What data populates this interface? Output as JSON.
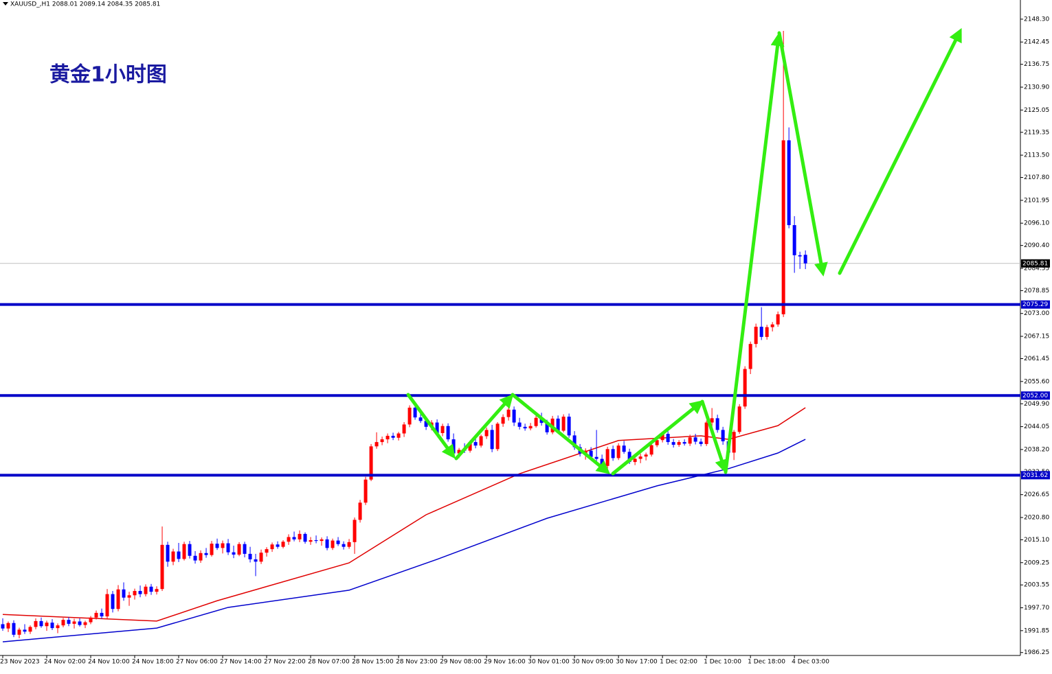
{
  "chart_data": {
    "type": "candlestick",
    "header": "XAUUSD_,H1  2088.01 2089.14 2084.35 2085.81",
    "title": "黄金1小时图",
    "up_color": "#ff0000",
    "down_color": "#0000ff",
    "ylim": [
      1985.5,
      2153.2
    ],
    "xlim": [
      -0.5,
      185.1
    ],
    "yticks": [
      {
        "value": 2148.3,
        "label": "2148.30"
      },
      {
        "value": 2142.45,
        "label": "2142.45"
      },
      {
        "value": 2136.75,
        "label": "2136.75"
      },
      {
        "value": 2130.9,
        "label": "2130.90"
      },
      {
        "value": 2125.05,
        "label": "2125.05"
      },
      {
        "value": 2119.35,
        "label": "2119.35"
      },
      {
        "value": 2113.5,
        "label": "2113.50"
      },
      {
        "value": 2107.8,
        "label": "2107.80"
      },
      {
        "value": 2101.95,
        "label": "2101.95"
      },
      {
        "value": 2096.1,
        "label": "2096.10"
      },
      {
        "value": 2090.4,
        "label": "2090.40"
      },
      {
        "value": 2084.55,
        "label": "2084.55"
      },
      {
        "value": 2078.85,
        "label": "2078.85"
      },
      {
        "value": 2073,
        "label": "2073.00"
      },
      {
        "value": 2067.15,
        "label": "2067.15"
      },
      {
        "value": 2061.45,
        "label": "2061.45"
      },
      {
        "value": 2055.6,
        "label": "2055.60"
      },
      {
        "value": 2049.9,
        "label": "2049.90"
      },
      {
        "value": 2044.05,
        "label": "2044.05"
      },
      {
        "value": 2038.2,
        "label": "2038.20"
      },
      {
        "value": 2032.5,
        "label": "2032.50"
      },
      {
        "value": 2026.65,
        "label": "2026.65"
      },
      {
        "value": 2020.8,
        "label": "2020.80"
      },
      {
        "value": 2015.1,
        "label": "2015.10"
      },
      {
        "value": 2009.25,
        "label": "2009.25"
      },
      {
        "value": 2003.55,
        "label": "2003.55"
      },
      {
        "value": 1997.7,
        "label": "1997.70"
      },
      {
        "value": 1991.85,
        "label": "1991.85"
      },
      {
        "value": 1986.25,
        "label": "1986.25"
      }
    ],
    "xticks": [
      {
        "value": 0,
        "label": "23 Nov 2023"
      },
      {
        "value": 8,
        "label": "24 Nov 02:00"
      },
      {
        "value": 16,
        "label": "24 Nov 10:00"
      },
      {
        "value": 24,
        "label": "24 Nov 18:00"
      },
      {
        "value": 32,
        "label": "27 Nov 06:00"
      },
      {
        "value": 40,
        "label": "27 Nov 14:00"
      },
      {
        "value": 48,
        "label": "27 Nov 22:00"
      },
      {
        "value": 56,
        "label": "28 Nov 07:00"
      },
      {
        "value": 64,
        "label": "28 Nov 15:00"
      },
      {
        "value": 72,
        "label": "28 Nov 23:00"
      },
      {
        "value": 80,
        "label": "29 Nov 08:00"
      },
      {
        "value": 88,
        "label": "29 Nov 16:00"
      },
      {
        "value": 96,
        "label": "30 Nov 01:00"
      },
      {
        "value": 104,
        "label": "30 Nov 09:00"
      },
      {
        "value": 112,
        "label": "30 Nov 17:00"
      },
      {
        "value": 120,
        "label": "1 Dec 02:00"
      },
      {
        "value": 128,
        "label": "1 Dec 10:00"
      },
      {
        "value": 136,
        "label": "1 Dec 18:00"
      },
      {
        "value": 144,
        "label": "4 Dec 03:00"
      }
    ],
    "ohlc": [
      [
        1993.5,
        1995,
        1991.8,
        1992.4
      ],
      [
        1992.4,
        1994.2,
        1991.5,
        1993.8
      ],
      [
        1993.8,
        1994.5,
        1990.2,
        1990.8
      ],
      [
        1990.8,
        1992.6,
        1989.9,
        1992.1
      ],
      [
        1992.1,
        1993.5,
        1991,
        1991.6
      ],
      [
        1991.6,
        1993.2,
        1991,
        1992.8
      ],
      [
        1992.8,
        1995,
        1992.2,
        1994.3
      ],
      [
        1994.3,
        1995.2,
        1992.6,
        1993
      ],
      [
        1993,
        1994.4,
        1991.8,
        1993.9
      ],
      [
        1993.9,
        1994.8,
        1992,
        1992.5
      ],
      [
        1992.5,
        1993.7,
        1991.2,
        1993.2
      ],
      [
        1993.2,
        1995.1,
        1992.7,
        1994.6
      ],
      [
        1994.6,
        1995.3,
        1993,
        1993.6
      ],
      [
        1993.6,
        1994.9,
        1992.4,
        1994.2
      ],
      [
        1994.2,
        1995,
        1992.9,
        1993.3
      ],
      [
        1993.3,
        1994.4,
        1992.5,
        1994
      ],
      [
        1994,
        1995.6,
        1993.5,
        1995.2
      ],
      [
        1995.2,
        1997,
        1994.7,
        1996.4
      ],
      [
        1996.4,
        1997.5,
        1994.9,
        1995.5
      ],
      [
        1995.5,
        2002.5,
        1995,
        2001.2
      ],
      [
        2001.2,
        2002,
        1996.5,
        1997.4
      ],
      [
        1997.4,
        2003.5,
        1996.8,
        2002.4
      ],
      [
        2002.4,
        2004.2,
        1999.5,
        2000.3
      ],
      [
        2000.3,
        2001.8,
        1998.2,
        2000.9
      ],
      [
        2000.9,
        2002.6,
        1999.8,
        2002
      ],
      [
        2002,
        2003.4,
        2000.4,
        2001.2
      ],
      [
        2001.2,
        2003.7,
        2000.6,
        2003.1
      ],
      [
        2003.1,
        2003.8,
        2001,
        2001.8
      ],
      [
        2001.8,
        2003.2,
        2001.1,
        2002.5
      ],
      [
        2002.5,
        2018.5,
        2002,
        2013.8
      ],
      [
        2013.8,
        2014.6,
        2008.2,
        2009.5
      ],
      [
        2009.5,
        2012.8,
        2008.6,
        2012.1
      ],
      [
        2012.1,
        2014.3,
        2009.4,
        2010.2
      ],
      [
        2010.2,
        2014.6,
        2009.8,
        2014
      ],
      [
        2014,
        2014.8,
        2010.3,
        2011
      ],
      [
        2011,
        2012.2,
        2009,
        2009.8
      ],
      [
        2009.8,
        2012.4,
        2009.2,
        2011.7
      ],
      [
        2011.7,
        2013,
        2010.5,
        2011.2
      ],
      [
        2011.2,
        2014.8,
        2010.8,
        2014.1
      ],
      [
        2014.1,
        2015.4,
        2012.5,
        2013
      ],
      [
        2013,
        2014.9,
        2011.6,
        2014.2
      ],
      [
        2014.2,
        2015.3,
        2011.2,
        2011.9
      ],
      [
        2011.9,
        2013.6,
        2010.4,
        2011.3
      ],
      [
        2011.3,
        2014.5,
        2010.9,
        2014
      ],
      [
        2014,
        2014.6,
        2010.6,
        2011.5
      ],
      [
        2011.5,
        2013.3,
        2009.3,
        2010.1
      ],
      [
        2010.1,
        2011.5,
        2005.8,
        2009.5
      ],
      [
        2009.5,
        2012.6,
        2008.9,
        2011.8
      ],
      [
        2011.8,
        2013.2,
        2010.8,
        2012.7
      ],
      [
        2012.7,
        2014.4,
        2012,
        2013.9
      ],
      [
        2013.9,
        2014.7,
        2012.8,
        2013.3
      ],
      [
        2013.3,
        2015,
        2012.9,
        2014.6
      ],
      [
        2014.6,
        2016.5,
        2013.8,
        2015.8
      ],
      [
        2015.8,
        2017.2,
        2014.7,
        2015.2
      ],
      [
        2015.2,
        2017.5,
        2014.5,
        2016.6
      ],
      [
        2016.6,
        2017,
        2014.1,
        2014.6
      ],
      [
        2014.6,
        2015.8,
        2013.8,
        2015
      ],
      [
        2015,
        2016.2,
        2014.2,
        2014.8
      ],
      [
        2014.8,
        2015.7,
        2013.6,
        2015.2
      ],
      [
        2015.2,
        2016,
        2012.4,
        2013
      ],
      [
        2013,
        2015.4,
        2012.5,
        2014.9
      ],
      [
        2014.9,
        2015.8,
        2013.5,
        2014
      ],
      [
        2014,
        2014.7,
        2012.6,
        2013.3
      ],
      [
        2013.3,
        2015.3,
        2012.8,
        2014.5
      ],
      [
        2014.5,
        2020.8,
        2011.5,
        2020.2
      ],
      [
        2020.2,
        2025.3,
        2019.5,
        2024.6
      ],
      [
        2024.6,
        2031.2,
        2024,
        2030.5
      ],
      [
        2030.5,
        2039.6,
        2030.1,
        2039
      ],
      [
        2039,
        2042.6,
        2038.4,
        2040.1
      ],
      [
        2040.1,
        2041.5,
        2039.3,
        2040.8
      ],
      [
        2040.8,
        2042.3,
        2039.8,
        2041.7
      ],
      [
        2041.7,
        2042.5,
        2040.6,
        2041.2
      ],
      [
        2041.2,
        2042.7,
        2040.5,
        2042.3
      ],
      [
        2042.3,
        2045.2,
        2041.4,
        2044.6
      ],
      [
        2044.6,
        2049.5,
        2043.9,
        2048.9
      ],
      [
        2048.9,
        2049.6,
        2045.8,
        2046.4
      ],
      [
        2046.4,
        2047.8,
        2045,
        2045.5
      ],
      [
        2045.5,
        2046.3,
        2043.2,
        2044
      ],
      [
        2044,
        2045.7,
        2043.1,
        2045.1
      ],
      [
        2045.1,
        2045.9,
        2041.8,
        2042.4
      ],
      [
        2042.4,
        2044.8,
        2041.6,
        2044.2
      ],
      [
        2044.2,
        2044.9,
        2040.2,
        2040.8
      ],
      [
        2040.8,
        2042.3,
        2036.4,
        2037.2
      ],
      [
        2037.2,
        2038.6,
        2036,
        2038.1
      ],
      [
        2038.1,
        2039.8,
        2037.3,
        2037.9
      ],
      [
        2037.9,
        2040.5,
        2037.4,
        2040.1
      ],
      [
        2040.1,
        2041.4,
        2038.5,
        2039.2
      ],
      [
        2039.2,
        2042,
        2038.7,
        2041.6
      ],
      [
        2041.6,
        2043.8,
        2040.9,
        2043.2
      ],
      [
        2043.2,
        2044.5,
        2037.5,
        2038.3
      ],
      [
        2038.3,
        2045.2,
        2037.8,
        2044.8
      ],
      [
        2044.8,
        2047.2,
        2044,
        2046.5
      ],
      [
        2046.5,
        2049.8,
        2045.6,
        2048.4
      ],
      [
        2048.4,
        2049.2,
        2044.2,
        2045.1
      ],
      [
        2045.1,
        2046.3,
        2043.3,
        2044
      ],
      [
        2044,
        2044.8,
        2043,
        2043.6
      ],
      [
        2043.6,
        2045,
        2043.1,
        2044.2
      ],
      [
        2044.2,
        2047,
        2043.8,
        2046.3
      ],
      [
        2046.3,
        2047.6,
        2044.3,
        2045
      ],
      [
        2045,
        2045.8,
        2042,
        2042.6
      ],
      [
        2042.6,
        2046.8,
        2042.1,
        2046.1
      ],
      [
        2046.1,
        2046.9,
        2042.3,
        2043
      ],
      [
        2043,
        2047.2,
        2042.6,
        2046.6
      ],
      [
        2046.6,
        2047.4,
        2041.2,
        2041.8
      ],
      [
        2041.8,
        2042.9,
        2038.1,
        2038.8
      ],
      [
        2038.8,
        2039.6,
        2036.4,
        2037.2
      ],
      [
        2037.2,
        2038.5,
        2035.6,
        2037.9
      ],
      [
        2037.9,
        2038.8,
        2035.7,
        2036.3
      ],
      [
        2036.3,
        2043.2,
        2035.1,
        2035.8
      ],
      [
        2035.8,
        2036.9,
        2033.2,
        2034
      ],
      [
        2034,
        2038.9,
        2032.1,
        2038.3
      ],
      [
        2038.3,
        2039.2,
        2035.3,
        2036
      ],
      [
        2036,
        2039.8,
        2035.5,
        2039.2
      ],
      [
        2039.2,
        2040.4,
        2037.1,
        2037.6
      ],
      [
        2037.6,
        2038.4,
        2034.5,
        2035
      ],
      [
        2035,
        2036.3,
        2034.2,
        2035.8
      ],
      [
        2035.8,
        2037.1,
        2034.7,
        2036.4
      ],
      [
        2036.4,
        2037.4,
        2035.4,
        2036.9
      ],
      [
        2036.9,
        2039.8,
        2036.4,
        2039.3
      ],
      [
        2039.3,
        2041,
        2038.8,
        2040.6
      ],
      [
        2040.6,
        2042.8,
        2040,
        2042.2
      ],
      [
        2042.2,
        2042.9,
        2039.4,
        2040.1
      ],
      [
        2040.1,
        2040.9,
        2038.7,
        2039.4
      ],
      [
        2039.4,
        2040.6,
        2038.9,
        2040.1
      ],
      [
        2040.1,
        2040.8,
        2039.2,
        2039.7
      ],
      [
        2039.7,
        2042,
        2039.1,
        2041.3
      ],
      [
        2041.3,
        2042.2,
        2039.5,
        2040.2
      ],
      [
        2040.2,
        2041,
        2039,
        2039.6
      ],
      [
        2039.6,
        2045.6,
        2039.1,
        2045.1
      ],
      [
        2045.1,
        2048.8,
        2043.9,
        2046.2
      ],
      [
        2046.2,
        2047.1,
        2042.5,
        2043.2
      ],
      [
        2043.2,
        2044,
        2039.4,
        2040.3
      ],
      [
        2040.3,
        2041.2,
        2036.6,
        2037.4
      ],
      [
        2037.4,
        2043.2,
        2035.5,
        2042.7
      ],
      [
        2042.7,
        2049.8,
        2042.2,
        2049.2
      ],
      [
        2049.2,
        2059.5,
        2048.6,
        2058.8
      ],
      [
        2058.8,
        2065.8,
        2057.5,
        2065.2
      ],
      [
        2065.2,
        2070.4,
        2064.3,
        2069.6
      ],
      [
        2069.6,
        2074.6,
        2066.2,
        2067
      ],
      [
        2067,
        2070.1,
        2066.3,
        2069.5
      ],
      [
        2069.5,
        2070.8,
        2068.4,
        2070.2
      ],
      [
        2070.2,
        2073.5,
        2069.6,
        2072.8
      ],
      [
        2072.8,
        2145.3,
        2072.1,
        2117.3
      ],
      [
        2117.3,
        2120.6,
        2094.8,
        2095.6
      ],
      [
        2095.6,
        2097.9,
        2083.4,
        2087.9
      ],
      [
        2087.9,
        2088.8,
        2084.4,
        2087.6
      ],
      [
        2088.01,
        2089.14,
        2084.35,
        2085.81
      ]
    ],
    "moving_averages": [
      {
        "color": "#e00000",
        "x": [
          0,
          28,
          39,
          63,
          77,
          94,
          112,
          127,
          132,
          141,
          146
        ],
        "values": [
          1996,
          1994.3,
          1999.5,
          2009.2,
          2021.5,
          2032,
          2040.5,
          2041.7,
          2040.8,
          2044.3,
          2048.9
        ]
      },
      {
        "color": "#0000cc",
        "x": [
          0,
          28,
          41,
          63,
          79,
          99,
          119,
          132,
          141,
          146
        ],
        "values": [
          1989,
          1992.5,
          1997.8,
          2002.2,
          2010.1,
          2020.6,
          2028.9,
          2033.3,
          2037.3,
          2040.8
        ]
      }
    ],
    "levels": {
      "color": "#0000c8",
      "values": [
        2075.29,
        2052.0,
        2031.62
      ],
      "value_labels": [
        "2075.29",
        "2052.00",
        "2031.62"
      ]
    },
    "last_price": {
      "value": 2085.81,
      "label": "2085.81"
    }
  }
}
